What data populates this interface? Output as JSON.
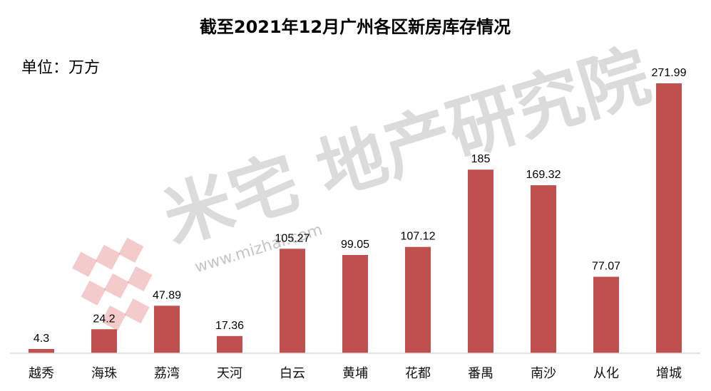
{
  "chart_data": {
    "type": "bar",
    "title": "截至2021年12月广州各区新房库存情况",
    "unit_label": "单位：万方",
    "categories": [
      "越秀",
      "海珠",
      "荔湾",
      "天河",
      "白云",
      "黄埔",
      "花都",
      "番禺",
      "南沙",
      "从化",
      "增城"
    ],
    "values": [
      4.3,
      24.2,
      47.89,
      17.36,
      105.27,
      99.05,
      107.12,
      185,
      169.32,
      77.07,
      271.99
    ],
    "value_labels": [
      "4.3",
      "24.2",
      "47.89",
      "17.36",
      "105.27",
      "99.05",
      "107.12",
      "185",
      "169.32",
      "77.07",
      "271.99"
    ],
    "ylim": [
      0,
      280
    ],
    "bar_color": "#c0504d",
    "grid": false,
    "legend": "none"
  },
  "watermark": {
    "text": "米宅 地产研究院",
    "url": "www.mizhai.com"
  }
}
